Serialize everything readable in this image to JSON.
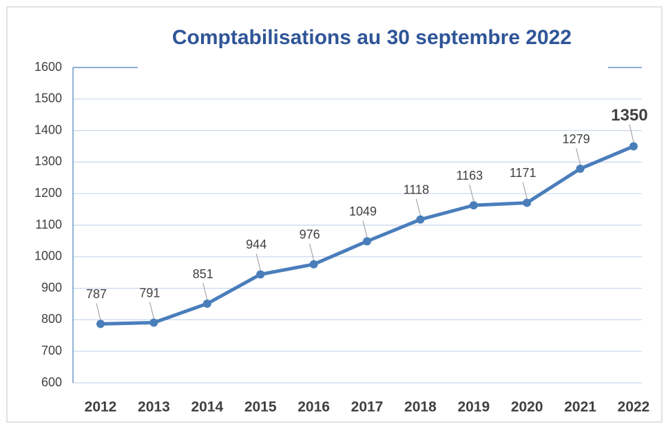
{
  "chart_data": {
    "type": "line",
    "title": "Comptabilisations au 30 septembre 2022",
    "categories": [
      "2012",
      "2013",
      "2014",
      "2015",
      "2016",
      "2017",
      "2018",
      "2019",
      "2020",
      "2021",
      "2022"
    ],
    "values": [
      787,
      791,
      851,
      944,
      976,
      1049,
      1118,
      1163,
      1171,
      1279,
      1350
    ],
    "color": "#4a7ebb",
    "ylim": [
      600,
      1600
    ],
    "yticks": [
      600,
      700,
      800,
      900,
      1000,
      1100,
      1200,
      1300,
      1400,
      1500,
      1600
    ],
    "grid": true
  }
}
